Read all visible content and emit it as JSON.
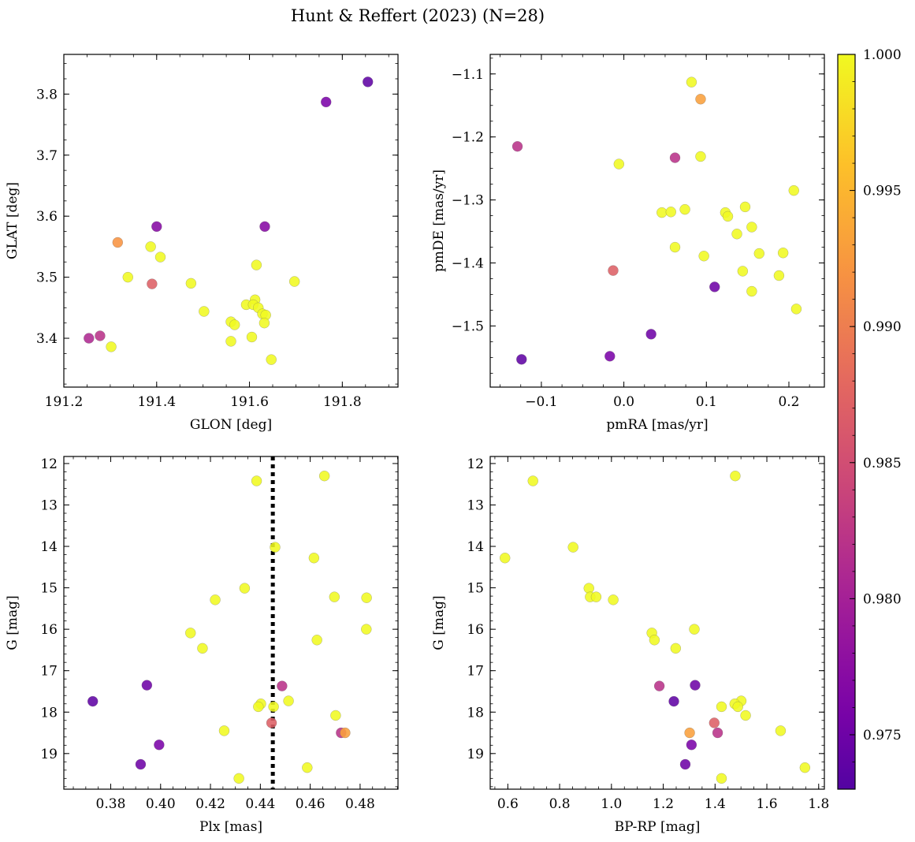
{
  "title": "Hunt & Reffert (2023) (N=28)",
  "colorbar": {
    "range": [
      0.973,
      1.0
    ],
    "ticks": [
      "0.975",
      "0.980",
      "0.985",
      "0.990",
      "0.995",
      "1.000"
    ],
    "tick_values": [
      0.975,
      0.98,
      0.985,
      0.99,
      0.995,
      1.0
    ],
    "colormap": "plasma"
  },
  "chart_data": [
    {
      "type": "scatter",
      "xlabel": "GLON [deg]",
      "ylabel": "GLAT [deg]",
      "xlim": [
        191.2,
        191.92
      ],
      "ylim": [
        3.32,
        3.865
      ],
      "xticks": [
        191.2,
        191.4,
        191.6,
        191.8
      ],
      "xtick_labels": [
        "191.2",
        "191.4",
        "191.6",
        "191.8"
      ],
      "yticks": [
        3.4,
        3.5,
        3.6,
        3.7,
        3.8
      ],
      "ytick_labels": [
        "3.4",
        "3.5",
        "3.6",
        "3.7",
        "3.8"
      ],
      "points": [
        {
          "x": 191.855,
          "y": 3.82,
          "c": 0.974
        },
        {
          "x": 191.765,
          "y": 3.787,
          "c": 0.976
        },
        {
          "x": 191.4,
          "y": 3.583,
          "c": 0.977
        },
        {
          "x": 191.633,
          "y": 3.583,
          "c": 0.977
        },
        {
          "x": 191.316,
          "y": 3.557,
          "c": 0.992
        },
        {
          "x": 191.387,
          "y": 3.55,
          "c": 1.0
        },
        {
          "x": 191.408,
          "y": 3.533,
          "c": 1.0
        },
        {
          "x": 191.615,
          "y": 3.52,
          "c": 1.0
        },
        {
          "x": 191.338,
          "y": 3.5,
          "c": 1.0
        },
        {
          "x": 191.697,
          "y": 3.493,
          "c": 1.0
        },
        {
          "x": 191.474,
          "y": 3.49,
          "c": 1.0
        },
        {
          "x": 191.39,
          "y": 3.489,
          "c": 0.987
        },
        {
          "x": 191.612,
          "y": 3.463,
          "c": 1.0
        },
        {
          "x": 191.593,
          "y": 3.455,
          "c": 1.0
        },
        {
          "x": 191.608,
          "y": 3.455,
          "c": 1.0
        },
        {
          "x": 191.619,
          "y": 3.45,
          "c": 1.0
        },
        {
          "x": 191.502,
          "y": 3.444,
          "c": 1.0
        },
        {
          "x": 191.628,
          "y": 3.44,
          "c": 1.0
        },
        {
          "x": 191.635,
          "y": 3.438,
          "c": 1.0
        },
        {
          "x": 191.56,
          "y": 3.427,
          "c": 1.0
        },
        {
          "x": 191.632,
          "y": 3.425,
          "c": 1.0
        },
        {
          "x": 191.568,
          "y": 3.422,
          "c": 1.0
        },
        {
          "x": 191.278,
          "y": 3.404,
          "c": 0.982
        },
        {
          "x": 191.605,
          "y": 3.402,
          "c": 1.0
        },
        {
          "x": 191.254,
          "y": 3.4,
          "c": 0.981
        },
        {
          "x": 191.56,
          "y": 3.395,
          "c": 1.0
        },
        {
          "x": 191.302,
          "y": 3.386,
          "c": 1.0
        },
        {
          "x": 191.647,
          "y": 3.365,
          "c": 1.0
        }
      ]
    },
    {
      "type": "scatter",
      "xlabel": "pmRA [mas/yr]",
      "ylabel": "pmDE [mas/yr]",
      "xlim": [
        -0.162,
        0.243
      ],
      "ylim": [
        -1.597,
        -1.069
      ],
      "xticks": [
        -0.1,
        0.0,
        0.1,
        0.2
      ],
      "xtick_labels": [
        "−0.1",
        "0.0",
        "0.1",
        "0.2"
      ],
      "yticks": [
        -1.1,
        -1.2,
        -1.3,
        -1.4,
        -1.5
      ],
      "ytick_labels": [
        "−1.1",
        "−1.2",
        "−1.3",
        "−1.4",
        "−1.5"
      ],
      "points": [
        {
          "x": 0.082,
          "y": -1.113,
          "c": 1.0
        },
        {
          "x": 0.093,
          "y": -1.14,
          "c": 0.993
        },
        {
          "x": -0.129,
          "y": -1.215,
          "c": 0.982
        },
        {
          "x": 0.062,
          "y": -1.233,
          "c": 0.982
        },
        {
          "x": 0.093,
          "y": -1.231,
          "c": 1.0
        },
        {
          "x": -0.006,
          "y": -1.243,
          "c": 1.0
        },
        {
          "x": 0.206,
          "y": -1.285,
          "c": 1.0
        },
        {
          "x": 0.046,
          "y": -1.32,
          "c": 1.0
        },
        {
          "x": 0.057,
          "y": -1.319,
          "c": 1.0
        },
        {
          "x": 0.074,
          "y": -1.315,
          "c": 1.0
        },
        {
          "x": 0.123,
          "y": -1.32,
          "c": 1.0
        },
        {
          "x": 0.126,
          "y": -1.326,
          "c": 1.0
        },
        {
          "x": 0.147,
          "y": -1.311,
          "c": 1.0
        },
        {
          "x": 0.155,
          "y": -1.343,
          "c": 1.0
        },
        {
          "x": 0.137,
          "y": -1.354,
          "c": 1.0
        },
        {
          "x": 0.062,
          "y": -1.375,
          "c": 1.0
        },
        {
          "x": 0.164,
          "y": -1.385,
          "c": 1.0
        },
        {
          "x": 0.193,
          "y": -1.384,
          "c": 1.0
        },
        {
          "x": 0.097,
          "y": -1.389,
          "c": 1.0
        },
        {
          "x": -0.013,
          "y": -1.412,
          "c": 0.987
        },
        {
          "x": 0.144,
          "y": -1.413,
          "c": 1.0
        },
        {
          "x": 0.188,
          "y": -1.42,
          "c": 1.0
        },
        {
          "x": 0.11,
          "y": -1.438,
          "c": 0.975
        },
        {
          "x": 0.155,
          "y": -1.445,
          "c": 1.0
        },
        {
          "x": 0.209,
          "y": -1.473,
          "c": 1.0
        },
        {
          "x": 0.033,
          "y": -1.513,
          "c": 0.975
        },
        {
          "x": -0.017,
          "y": -1.548,
          "c": 0.976
        },
        {
          "x": -0.124,
          "y": -1.553,
          "c": 0.974
        }
      ]
    },
    {
      "type": "scatter",
      "xlabel": "Plx [mas]",
      "ylabel": "G [mag]",
      "xlim": [
        0.3612,
        0.4952
      ],
      "ylim": [
        19.86,
        11.83
      ],
      "y_inverted": true,
      "vline": 0.445,
      "xticks": [
        0.38,
        0.4,
        0.42,
        0.44,
        0.46,
        0.48
      ],
      "xtick_labels": [
        "0.38",
        "0.40",
        "0.42",
        "0.44",
        "0.46",
        "0.48"
      ],
      "yticks": [
        12,
        13,
        14,
        15,
        16,
        17,
        18,
        19
      ],
      "ytick_labels": [
        "12",
        "13",
        "14",
        "15",
        "16",
        "17",
        "18",
        "19"
      ],
      "points": [
        {
          "x": 0.4657,
          "y": 12.3,
          "c": 1.0
        },
        {
          "x": 0.4385,
          "y": 12.42,
          "c": 1.0
        },
        {
          "x": 0.4459,
          "y": 14.02,
          "c": 1.0
        },
        {
          "x": 0.4615,
          "y": 14.28,
          "c": 1.0
        },
        {
          "x": 0.4337,
          "y": 15.01,
          "c": 1.0
        },
        {
          "x": 0.4697,
          "y": 15.22,
          "c": 1.0
        },
        {
          "x": 0.4826,
          "y": 15.24,
          "c": 1.0
        },
        {
          "x": 0.4219,
          "y": 15.29,
          "c": 1.0
        },
        {
          "x": 0.4825,
          "y": 16.0,
          "c": 1.0
        },
        {
          "x": 0.412,
          "y": 16.09,
          "c": 1.0
        },
        {
          "x": 0.4627,
          "y": 16.26,
          "c": 1.0
        },
        {
          "x": 0.4168,
          "y": 16.46,
          "c": 1.0
        },
        {
          "x": 0.3945,
          "y": 17.35,
          "c": 0.975
        },
        {
          "x": 0.4487,
          "y": 17.37,
          "c": 0.982
        },
        {
          "x": 0.3728,
          "y": 17.74,
          "c": 0.974
        },
        {
          "x": 0.4513,
          "y": 17.73,
          "c": 1.0
        },
        {
          "x": 0.4402,
          "y": 17.8,
          "c": 1.0
        },
        {
          "x": 0.4392,
          "y": 17.87,
          "c": 1.0
        },
        {
          "x": 0.4453,
          "y": 17.87,
          "c": 1.0
        },
        {
          "x": 0.4702,
          "y": 18.08,
          "c": 1.0
        },
        {
          "x": 0.4445,
          "y": 18.26,
          "c": 0.987
        },
        {
          "x": 0.4255,
          "y": 18.45,
          "c": 1.0
        },
        {
          "x": 0.4724,
          "y": 18.5,
          "c": 0.982
        },
        {
          "x": 0.474,
          "y": 18.5,
          "c": 0.993
        },
        {
          "x": 0.3994,
          "y": 18.79,
          "c": 0.976
        },
        {
          "x": 0.392,
          "y": 19.26,
          "c": 0.975
        },
        {
          "x": 0.4588,
          "y": 19.34,
          "c": 1.0
        },
        {
          "x": 0.4314,
          "y": 19.6,
          "c": 1.0
        }
      ]
    },
    {
      "type": "scatter",
      "xlabel": "BP-RP [mag]",
      "ylabel": "G [mag]",
      "xlim": [
        0.532,
        1.822
      ],
      "ylim": [
        19.86,
        11.83
      ],
      "y_inverted": true,
      "xticks": [
        0.6,
        0.8,
        1.0,
        1.2,
        1.4,
        1.6,
        1.8
      ],
      "xtick_labels": [
        "0.6",
        "0.8",
        "1.0",
        "1.2",
        "1.4",
        "1.6",
        "1.8"
      ],
      "yticks": [
        12,
        13,
        14,
        15,
        16,
        17,
        18,
        19
      ],
      "ytick_labels": [
        "12",
        "13",
        "14",
        "15",
        "16",
        "17",
        "18",
        "19"
      ],
      "points": [
        {
          "x": 1.478,
          "y": 12.3,
          "c": 1.0
        },
        {
          "x": 0.697,
          "y": 12.42,
          "c": 1.0
        },
        {
          "x": 0.852,
          "y": 14.02,
          "c": 1.0
        },
        {
          "x": 0.589,
          "y": 14.28,
          "c": 1.0
        },
        {
          "x": 0.913,
          "y": 15.01,
          "c": 1.0
        },
        {
          "x": 0.918,
          "y": 15.22,
          "c": 1.0
        },
        {
          "x": 0.941,
          "y": 15.22,
          "c": 1.0
        },
        {
          "x": 1.007,
          "y": 15.29,
          "c": 1.0
        },
        {
          "x": 1.32,
          "y": 16.0,
          "c": 1.0
        },
        {
          "x": 1.156,
          "y": 16.09,
          "c": 1.0
        },
        {
          "x": 1.166,
          "y": 16.26,
          "c": 1.0
        },
        {
          "x": 1.248,
          "y": 16.46,
          "c": 1.0
        },
        {
          "x": 1.185,
          "y": 17.37,
          "c": 0.982
        },
        {
          "x": 1.323,
          "y": 17.35,
          "c": 0.975
        },
        {
          "x": 1.241,
          "y": 17.74,
          "c": 0.974
        },
        {
          "x": 1.501,
          "y": 17.73,
          "c": 1.0
        },
        {
          "x": 1.476,
          "y": 17.8,
          "c": 1.0
        },
        {
          "x": 1.425,
          "y": 17.87,
          "c": 1.0
        },
        {
          "x": 1.488,
          "y": 17.87,
          "c": 1.0
        },
        {
          "x": 1.518,
          "y": 18.08,
          "c": 1.0
        },
        {
          "x": 1.397,
          "y": 18.26,
          "c": 0.987
        },
        {
          "x": 1.653,
          "y": 18.45,
          "c": 1.0
        },
        {
          "x": 1.41,
          "y": 18.5,
          "c": 0.982
        },
        {
          "x": 1.302,
          "y": 18.5,
          "c": 0.993
        },
        {
          "x": 1.309,
          "y": 18.79,
          "c": 0.976
        },
        {
          "x": 1.285,
          "y": 19.26,
          "c": 0.975
        },
        {
          "x": 1.747,
          "y": 19.34,
          "c": 1.0
        },
        {
          "x": 1.425,
          "y": 19.6,
          "c": 1.0
        }
      ]
    }
  ]
}
